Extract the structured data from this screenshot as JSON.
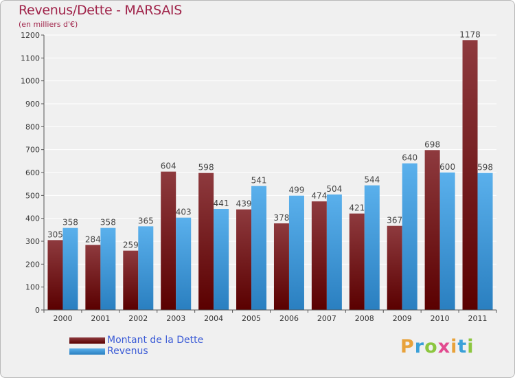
{
  "title": "Revenus/Dette - MARSAIS",
  "subtitle": "(en milliers d'€)",
  "legend": {
    "dette": "Montant de la Dette",
    "revenus": "Revenus"
  },
  "logo": {
    "letters": [
      "P",
      "r",
      "o",
      "x",
      "i",
      "t",
      "i"
    ],
    "colors": [
      "#e8a23a",
      "#3aa0d8",
      "#8cc63f",
      "#e24a8f",
      "#e8a23a",
      "#3aa0d8",
      "#8cc63f"
    ]
  },
  "colors": {
    "dette_dark": "#5a0000",
    "dette_light": "#8e3a3e",
    "revenus_dark": "#2a7fc0",
    "revenus_light": "#5ab0ec",
    "title": "#a0244a",
    "legend_text": "#3b5bd6"
  },
  "chart_data": {
    "type": "bar",
    "categories": [
      "2000",
      "2001",
      "2002",
      "2003",
      "2004",
      "2005",
      "2006",
      "2007",
      "2008",
      "2009",
      "2010",
      "2011"
    ],
    "series": [
      {
        "name": "Montant de la Dette",
        "values": [
          305,
          284,
          259,
          604,
          598,
          439,
          378,
          474,
          421,
          367,
          698,
          1178
        ]
      },
      {
        "name": "Revenus",
        "values": [
          358,
          358,
          365,
          403,
          441,
          541,
          499,
          504,
          544,
          640,
          600,
          598
        ]
      }
    ],
    "ylim": [
      0,
      1200
    ],
    "yticks": [
      0,
      100,
      200,
      300,
      400,
      500,
      600,
      700,
      800,
      900,
      1000,
      1100,
      1200
    ],
    "grid": true,
    "legend_position": "bottom-left"
  }
}
